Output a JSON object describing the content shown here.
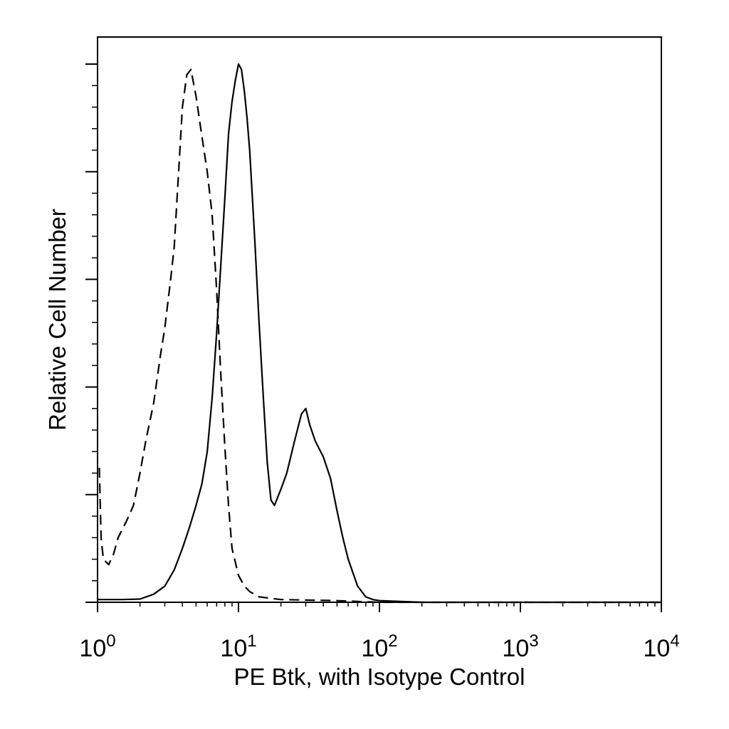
{
  "chart_data": {
    "type": "line",
    "xlabel": "PE Btk, with Isotype Control",
    "ylabel": "Relative Cell Number",
    "x_scale": "log",
    "xlim": [
      1,
      10000
    ],
    "ylim": [
      0,
      100
    ],
    "x_ticks": [
      {
        "value": 1,
        "base": "10",
        "exp": "0"
      },
      {
        "value": 10,
        "base": "10",
        "exp": "1"
      },
      {
        "value": 100,
        "base": "10",
        "exp": "2"
      },
      {
        "value": 1000,
        "base": "10",
        "exp": "3"
      },
      {
        "value": 10000,
        "base": "10",
        "exp": "4"
      }
    ],
    "y_major_ticks": [
      0,
      20,
      40,
      60,
      80,
      100
    ],
    "grid": false,
    "legend": "none",
    "series": [
      {
        "style": "solid",
        "color": "#000000",
        "points": [
          [
            1.0,
            0.5
          ],
          [
            1.5,
            0.5
          ],
          [
            2.0,
            0.6
          ],
          [
            2.5,
            1.5
          ],
          [
            3.0,
            3
          ],
          [
            3.5,
            6
          ],
          [
            4.0,
            10
          ],
          [
            4.5,
            14
          ],
          [
            5.0,
            18
          ],
          [
            5.5,
            22
          ],
          [
            6.0,
            28
          ],
          [
            6.5,
            38
          ],
          [
            7.0,
            50
          ],
          [
            7.5,
            63
          ],
          [
            8.0,
            75
          ],
          [
            8.5,
            87
          ],
          [
            9.0,
            93
          ],
          [
            9.5,
            97
          ],
          [
            10.0,
            100
          ],
          [
            10.5,
            99
          ],
          [
            11.0,
            95
          ],
          [
            11.5,
            90
          ],
          [
            12.0,
            84
          ],
          [
            13.0,
            68
          ],
          [
            14.0,
            52
          ],
          [
            15.0,
            38
          ],
          [
            16.0,
            26
          ],
          [
            17.0,
            19
          ],
          [
            18.0,
            18
          ],
          [
            20.0,
            21
          ],
          [
            22.0,
            24
          ],
          [
            25.0,
            30
          ],
          [
            28.0,
            35
          ],
          [
            30.0,
            36
          ],
          [
            32.0,
            33
          ],
          [
            35.0,
            30
          ],
          [
            40.0,
            27
          ],
          [
            45.0,
            23
          ],
          [
            50.0,
            17
          ],
          [
            55.0,
            12
          ],
          [
            60.0,
            8
          ],
          [
            70.0,
            3
          ],
          [
            80.0,
            1
          ],
          [
            90.0,
            0.5
          ],
          [
            100.0,
            0.3
          ],
          [
            200.0,
            0
          ],
          [
            10000.0,
            0
          ]
        ]
      },
      {
        "style": "dashed",
        "color": "#000000",
        "points": [
          [
            1.03,
            25
          ],
          [
            1.06,
            12
          ],
          [
            1.1,
            8
          ],
          [
            1.2,
            7
          ],
          [
            1.3,
            9
          ],
          [
            1.4,
            12
          ],
          [
            1.6,
            15
          ],
          [
            1.8,
            18
          ],
          [
            2.0,
            24
          ],
          [
            2.2,
            30
          ],
          [
            2.5,
            37
          ],
          [
            2.8,
            46
          ],
          [
            3.0,
            51
          ],
          [
            3.3,
            60
          ],
          [
            3.5,
            66
          ],
          [
            3.8,
            82
          ],
          [
            4.0,
            92
          ],
          [
            4.3,
            98
          ],
          [
            4.6,
            99
          ],
          [
            5.0,
            94
          ],
          [
            5.4,
            88
          ],
          [
            6.0,
            80
          ],
          [
            6.5,
            72
          ],
          [
            7.0,
            58
          ],
          [
            7.5,
            42
          ],
          [
            8.0,
            29
          ],
          [
            8.5,
            18
          ],
          [
            9.0,
            10
          ],
          [
            10.0,
            5
          ],
          [
            11.0,
            3
          ],
          [
            12.0,
            2
          ],
          [
            14.0,
            1
          ],
          [
            20.0,
            0.5
          ],
          [
            50.0,
            0.3
          ],
          [
            100.0,
            0
          ],
          [
            10000.0,
            0
          ]
        ]
      }
    ]
  }
}
